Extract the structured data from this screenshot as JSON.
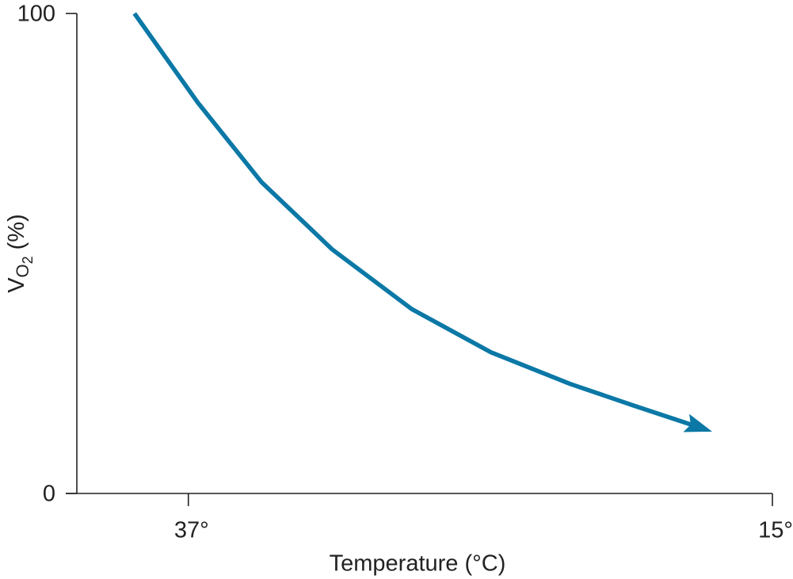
{
  "chart_data": {
    "type": "line",
    "x_label": "Temperature (°C)",
    "y_label": [
      "V",
      "O",
      "2",
      "(%)"
    ],
    "xlim": [
      41.2,
      15
    ],
    "xticks": [
      {
        "value": 37,
        "label": "37°"
      },
      {
        "value": 15,
        "label": "15°"
      }
    ],
    "ylim": [
      0,
      100
    ],
    "yticks": [
      0,
      100
    ],
    "grid": false,
    "series": [
      {
        "color": "#0b78a6",
        "x": [
          39.03,
          36.64,
          34.25,
          31.57,
          28.58,
          25.6,
          22.61,
          20.22,
          17.99
        ],
        "values": [
          100,
          81.4,
          64.9,
          50.8,
          38.4,
          29.4,
          22.8,
          18.3,
          14.2
        ]
      }
    ]
  }
}
